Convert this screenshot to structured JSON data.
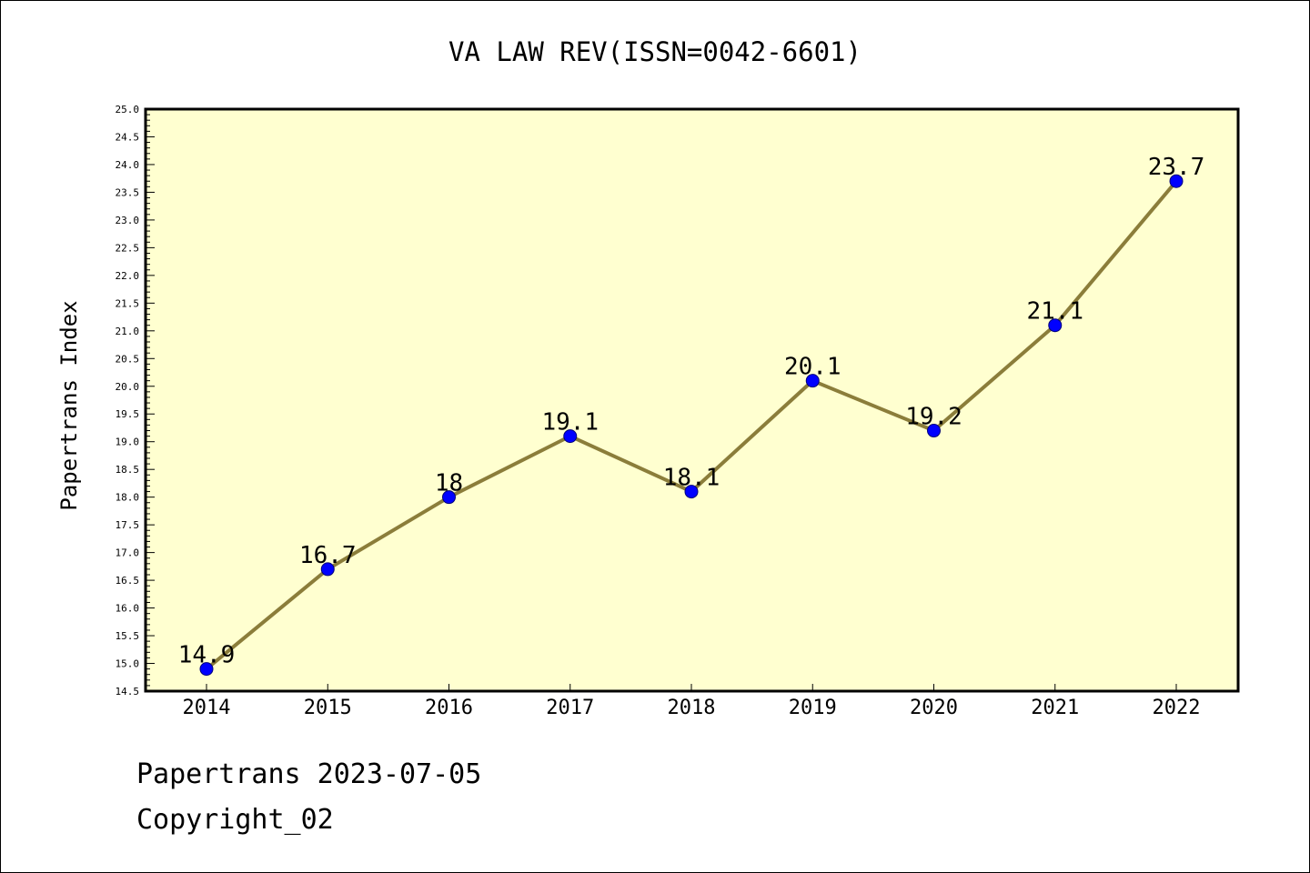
{
  "chart_data": {
    "type": "line",
    "title": "VA LAW REV(ISSN=0042-6601)",
    "xlabel": "",
    "ylabel": "Papertrans Index",
    "categories": [
      "2014",
      "2015",
      "2016",
      "2017",
      "2018",
      "2019",
      "2020",
      "2021",
      "2022"
    ],
    "series": [
      {
        "values": [
          14.9,
          16.7,
          18,
          19.1,
          18.1,
          20.1,
          19.2,
          21.1,
          23.7
        ],
        "data_labels": [
          "14.9",
          "16.7",
          "18",
          "19.1",
          "18.1",
          "20.1",
          "19.2",
          "21.1",
          "23.7"
        ]
      }
    ],
    "ylim": [
      14.5,
      25.0
    ],
    "yticks": [
      "14.5",
      "15.0",
      "15.5",
      "16.0",
      "16.5",
      "17.0",
      "17.5",
      "18.0",
      "18.5",
      "19.0",
      "19.5",
      "20.0",
      "20.5",
      "21.0",
      "21.5",
      "22.0",
      "22.5",
      "23.0",
      "23.5",
      "24.0",
      "24.5",
      "25.0"
    ],
    "grid": false,
    "legend": "none",
    "colors": {
      "plot_background": "#ffffd0",
      "line": "#8b7d3a",
      "marker": "#0000ff"
    }
  },
  "footer": {
    "line1": "Papertrans 2023-07-05",
    "line2": "Copyright_02"
  }
}
